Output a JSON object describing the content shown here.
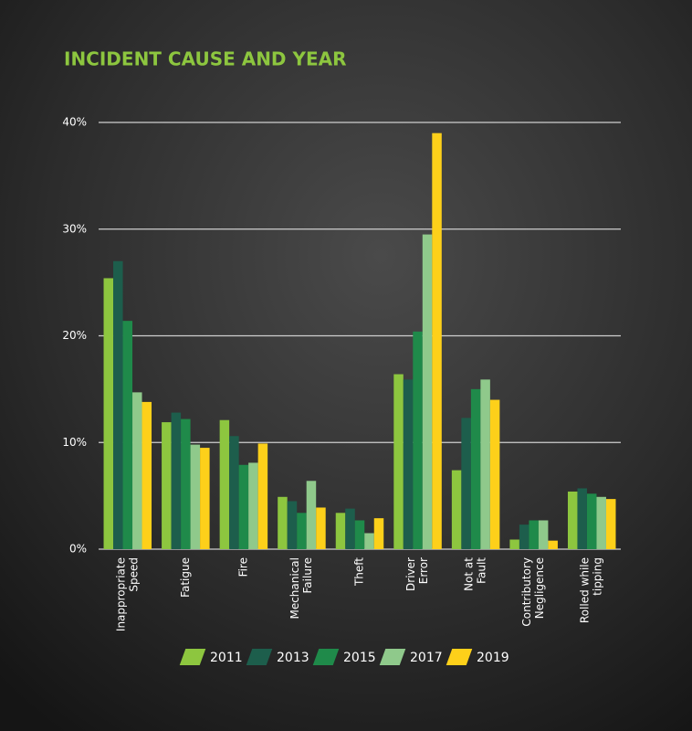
{
  "chart_data": {
    "type": "bar",
    "title": "INCIDENT CAUSE AND YEAR",
    "categories": [
      [
        "Inappropriate",
        "Speed"
      ],
      [
        "Fatigue"
      ],
      [
        "Fire"
      ],
      [
        "Mechanical",
        "Failure"
      ],
      [
        "Theft"
      ],
      [
        "Driver",
        "Error"
      ],
      [
        "Not at",
        "Fault"
      ],
      [
        "Contributory",
        "Negligence"
      ],
      [
        "Rolled while",
        "tipping"
      ]
    ],
    "series": [
      {
        "name": "2011",
        "color": "#8dc63f",
        "values": [
          25.4,
          11.9,
          12.1,
          4.9,
          3.4,
          16.4,
          7.4,
          0.9,
          5.4
        ]
      },
      {
        "name": "2013",
        "color": "#1d5e4c",
        "values": [
          27.0,
          12.8,
          10.6,
          4.5,
          3.8,
          15.9,
          12.3,
          2.3,
          5.7
        ]
      },
      {
        "name": "2015",
        "color": "#1f8a4a",
        "values": [
          21.4,
          12.2,
          7.9,
          3.4,
          2.7,
          20.4,
          15.0,
          2.7,
          5.2
        ]
      },
      {
        "name": "2017",
        "color": "#8fc98b",
        "values": [
          14.7,
          9.8,
          8.1,
          6.4,
          1.5,
          29.5,
          15.9,
          2.7,
          4.9
        ]
      },
      {
        "name": "2019",
        "color": "#fdd01a",
        "values": [
          13.8,
          9.5,
          9.9,
          3.9,
          2.9,
          39.0,
          14.0,
          0.8,
          4.7
        ]
      }
    ],
    "ylim": [
      0,
      40
    ],
    "yticks": [
      {
        "value": 0,
        "label": "0%"
      },
      {
        "value": 10,
        "label": "10%"
      },
      {
        "value": 20,
        "label": "20%"
      },
      {
        "value": 30,
        "label": "30%"
      },
      {
        "value": 40,
        "label": "40%"
      }
    ],
    "grid": true
  }
}
